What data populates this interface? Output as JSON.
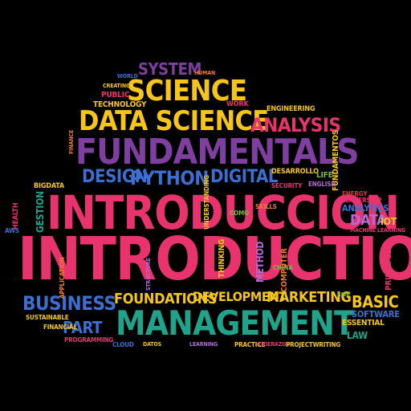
{
  "palette": {
    "pink": "#e8336f",
    "yellow": "#f5c518",
    "purple": "#7e3fa0",
    "teal": "#1fa38a",
    "blue": "#3b6fd1",
    "orange": "#f07c2a",
    "red": "#d33a3a",
    "green": "#77b840",
    "lavender": "#b36bd6",
    "background": "#000000"
  },
  "words": {
    "introduccion_1": "INTRODUCCION",
    "introduccion_2": "INTRODUCTION",
    "fundamentals": "FUNDAMENTALS",
    "management": "MANAGEMENT",
    "data_science": "DATA SCIENCE",
    "science": "SCIENCE",
    "system": "SYSTEM",
    "analysis": "ANALYSIS",
    "design": "DESIGN",
    "python": "PYTHON",
    "digital": "DIGITAL",
    "business": "BUSINESS",
    "foundations": "FOUNDATIONS",
    "development": "DEVELOPMENT",
    "marketing": "MARKETING",
    "basic": "BASIC",
    "part": "PART",
    "data": "DATA",
    "iot": "IOT",
    "analytics": "ANALYTICS",
    "software": "SOFTWARE",
    "essential": "ESSENTIAL",
    "law": "LAW",
    "technology": "TECHNOLOGY",
    "public": "PUBLIC",
    "creating": "CREATING",
    "human": "HUMAN",
    "work": "WORK",
    "engineering": "ENGINEERING",
    "desarrollo": "DESARROLLO",
    "life": "LIFE",
    "english": "ENGLISH",
    "security": "SECURITY",
    "fundamentos": "FUNDAMENTOS",
    "energy": "ENERGY",
    "leadership": "LEADERSHIP",
    "machine_learning": "MACHINE LEARNING",
    "health": "HEALTH",
    "gestion": "GESTION",
    "bigdata": "BIGDATA",
    "finance": "FINANCE",
    "financial": "FINANCIAL",
    "sustainable": "SUSTAINABLE",
    "programming": "PROGRAMMING",
    "application": "APPLICATION",
    "cloud": "CLOUD",
    "datos": "DATOS",
    "learning": "LEARNING",
    "practice": "PRACTICE",
    "liderazgo": "LIDERAZGO",
    "projectwriting": "PROJECTWRITING",
    "thinking": "THINKING",
    "method": "METHOD",
    "computer": "COMPUTER",
    "principle": "PRINCIPLE",
    "understanding": "UNDERSTANDING",
    "skills": "SKILLS",
    "world": "WORLD",
    "como": "COMO",
    "structure": "STRUCTURE",
    "china": "CHINA",
    "risk": "RISK",
    "aws": "AWS"
  }
}
